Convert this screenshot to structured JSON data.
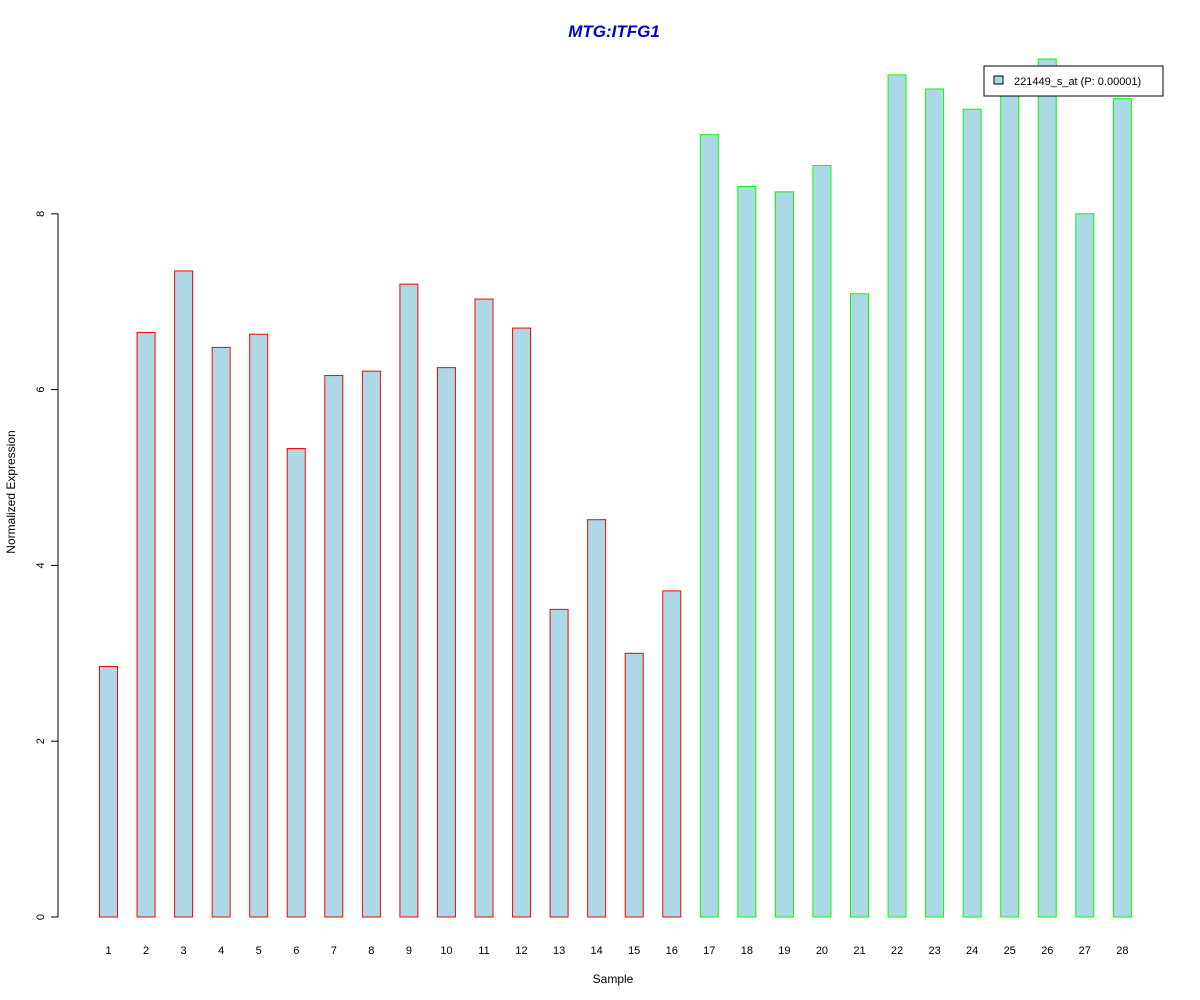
{
  "chart_data": {
    "type": "bar",
    "title": "MTG:ITFG1",
    "xlabel": "Sample",
    "ylabel": "Normalized Expression",
    "ylim": [
      0,
      9.8
    ],
    "yticks": [
      "0",
      "2",
      "4",
      "6",
      "8"
    ],
    "grid": false,
    "legend_placement": "top-right",
    "categories": [
      "1",
      "2",
      "3",
      "4",
      "5",
      "6",
      "7",
      "8",
      "9",
      "10",
      "11",
      "12",
      "13",
      "14",
      "15",
      "16",
      "17",
      "18",
      "19",
      "20",
      "21",
      "22",
      "23",
      "24",
      "25",
      "26",
      "27",
      "28"
    ],
    "series": [
      {
        "name": "221449_s_at (P: 0.00001)",
        "values": [
          2.85,
          6.65,
          7.35,
          6.48,
          6.63,
          5.33,
          6.16,
          6.21,
          7.2,
          6.25,
          7.03,
          6.7,
          3.5,
          4.52,
          3.0,
          3.71,
          8.9,
          8.31,
          8.25,
          8.55,
          7.09,
          9.58,
          9.42,
          9.19,
          9.4,
          9.76,
          8.0,
          9.31
        ],
        "fill_color": "#add8e6",
        "border_colors": [
          "#ff0000",
          "#ff0000",
          "#ff0000",
          "#ff0000",
          "#ff0000",
          "#ff0000",
          "#ff0000",
          "#ff0000",
          "#ff0000",
          "#ff0000",
          "#ff0000",
          "#ff0000",
          "#ff0000",
          "#ff0000",
          "#ff0000",
          "#ff0000",
          "#00ff00",
          "#00ff00",
          "#00ff00",
          "#00ff00",
          "#00ff00",
          "#00ff00",
          "#00ff00",
          "#00ff00",
          "#00ff00",
          "#00ff00",
          "#00ff00",
          "#00ff00"
        ]
      }
    ],
    "colors": {
      "title": "#0000cd",
      "bar_fill": "#add8e6",
      "group1_border": "#ff0000",
      "group2_border": "#00ff00"
    }
  }
}
